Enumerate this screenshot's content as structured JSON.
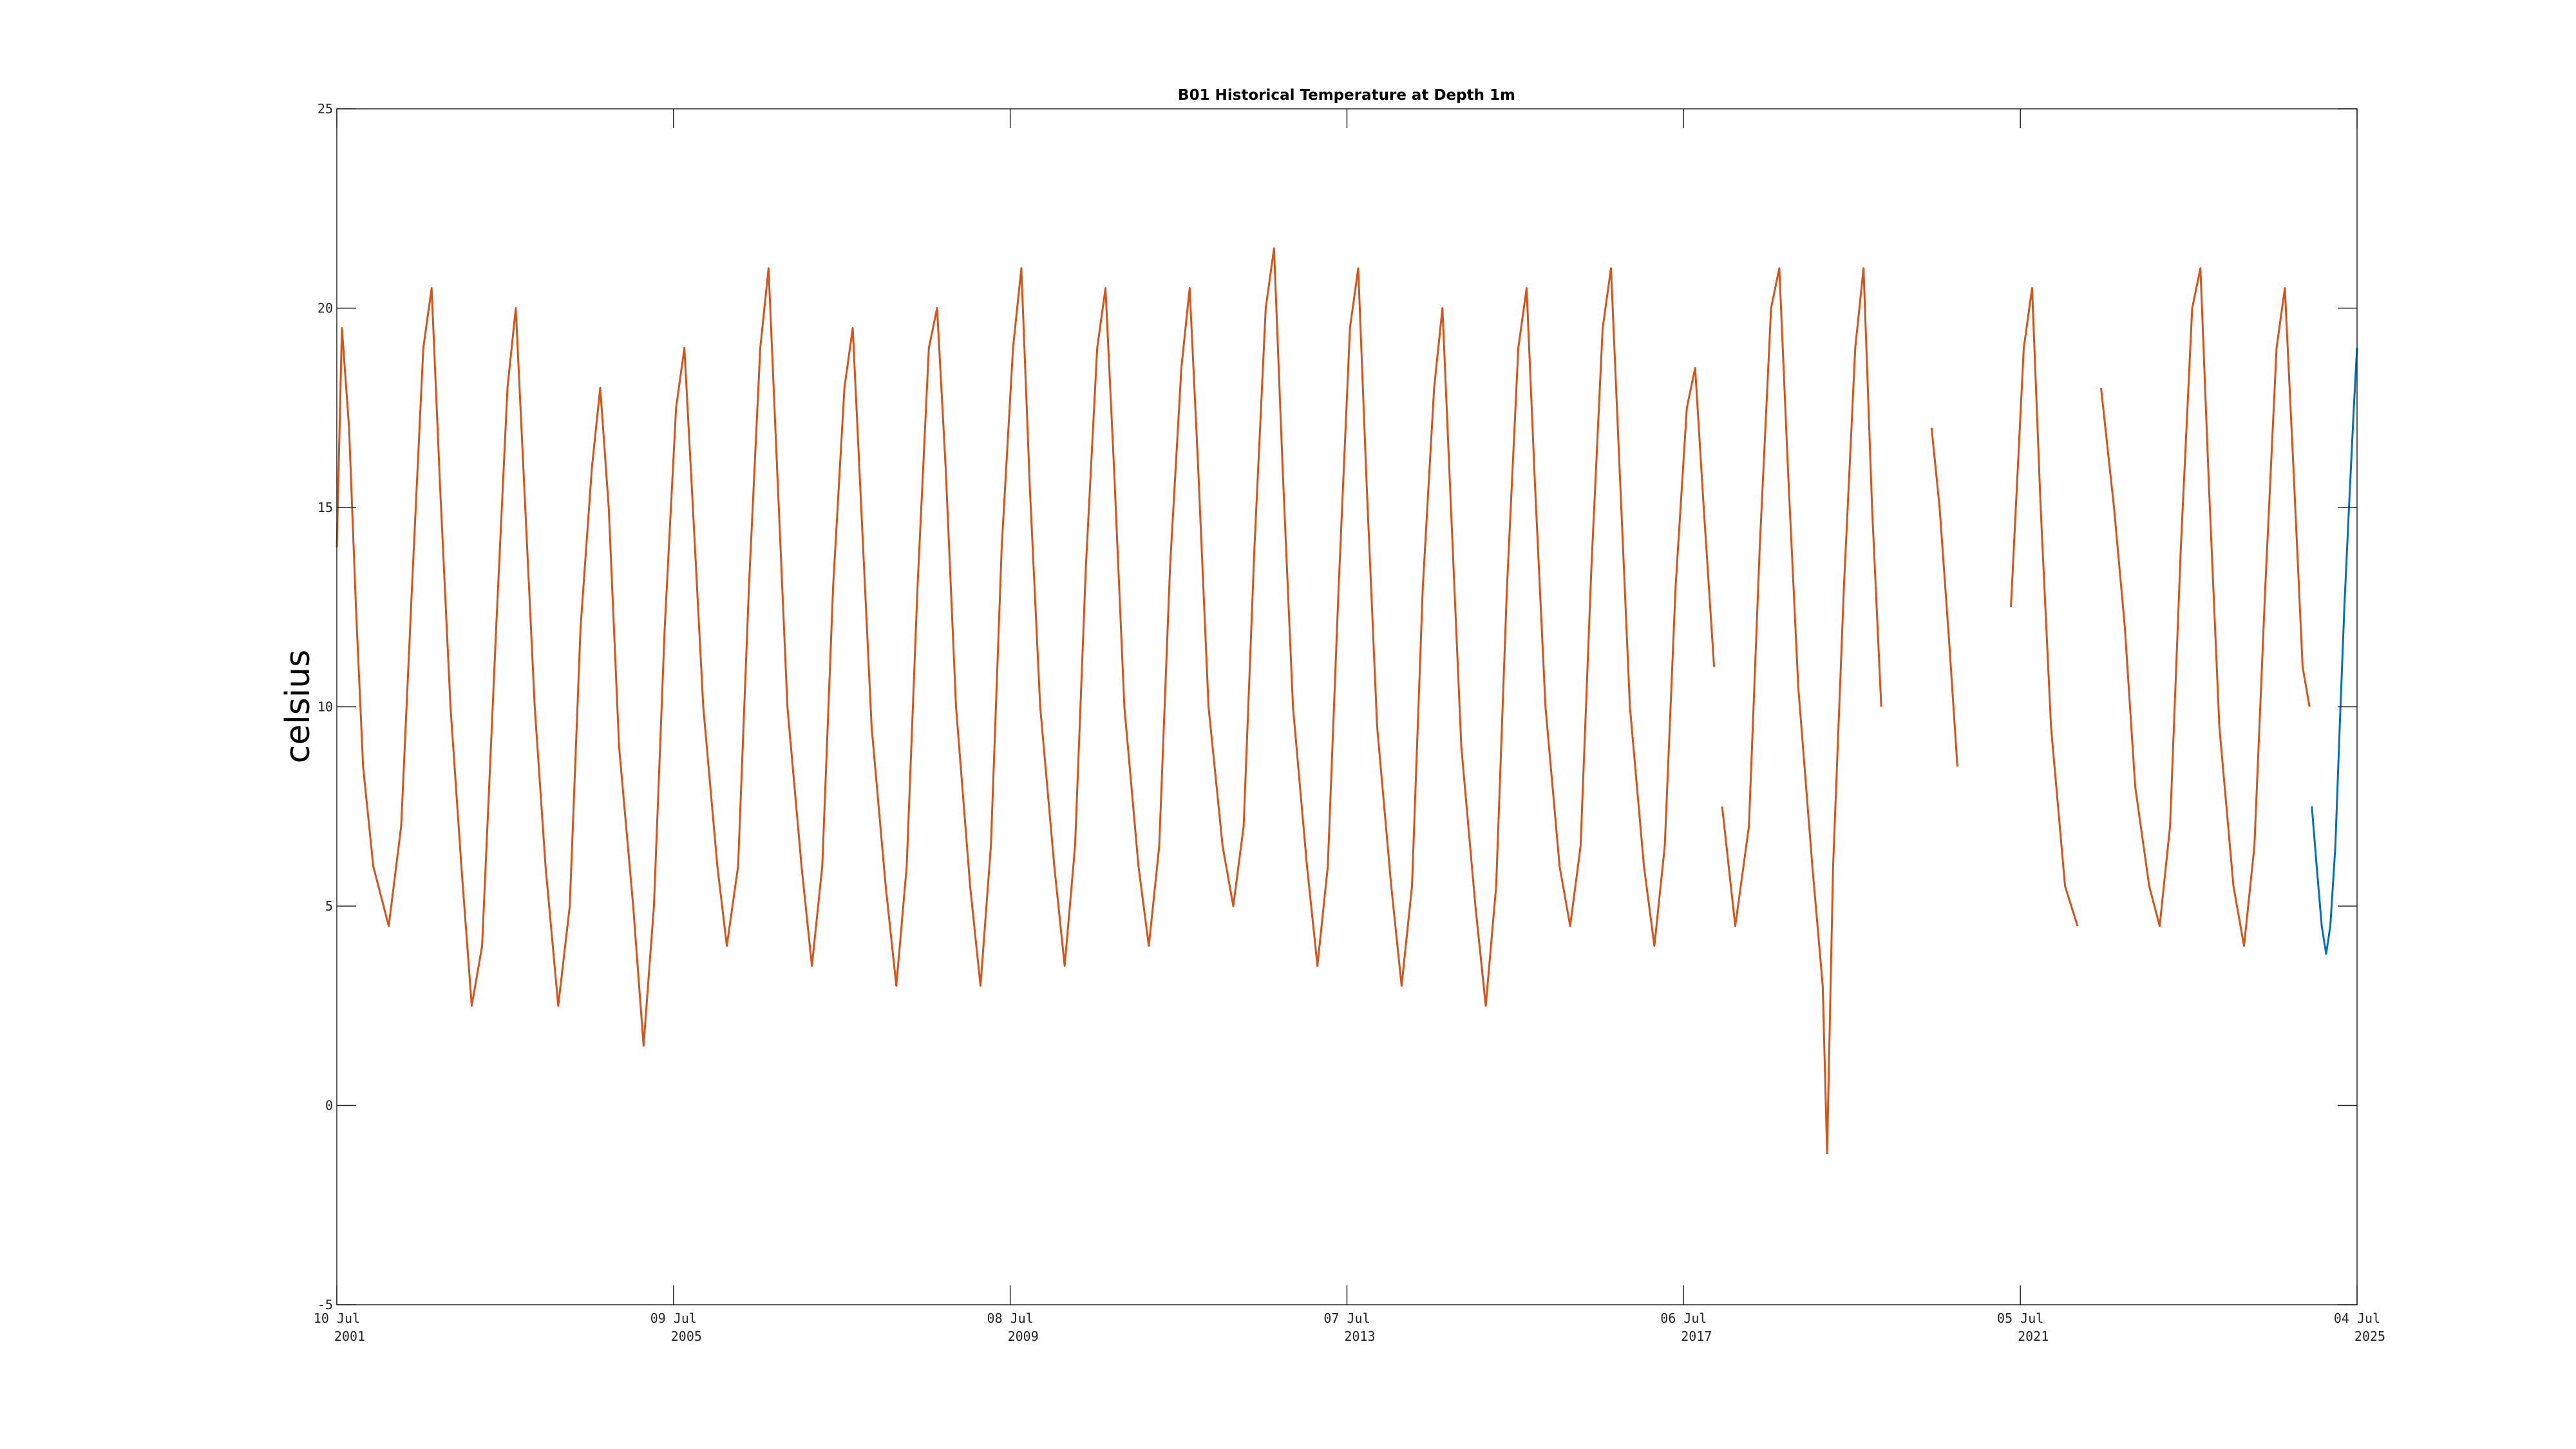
{
  "chart_data": {
    "type": "line",
    "title": "B01 Historical Temperature at Depth 1m",
    "xlabel": "",
    "ylabel": "celsius",
    "ylim": [
      -5,
      25
    ],
    "yticks": [
      -5,
      0,
      5,
      10,
      15,
      20,
      25
    ],
    "xlim": [
      "2001-07-10",
      "2025-07-04"
    ],
    "xticks": [
      {
        "date": "2001-07-10",
        "line1": "10 Jul",
        "line2": "2001"
      },
      {
        "date": "2005-07-09",
        "line1": "09 Jul",
        "line2": "2005"
      },
      {
        "date": "2009-07-08",
        "line1": "08 Jul",
        "line2": "2009"
      },
      {
        "date": "2013-07-07",
        "line1": "07 Jul",
        "line2": "2013"
      },
      {
        "date": "2017-07-06",
        "line1": "06 Jul",
        "line2": "2017"
      },
      {
        "date": "2021-07-05",
        "line1": "05 Jul",
        "line2": "2021"
      },
      {
        "date": "2025-07-04",
        "line1": "04 Jul",
        "line2": "2025"
      }
    ],
    "grid": false,
    "legend": "none",
    "series": [
      {
        "color": "#d95319",
        "points": [
          [
            "2001-07-10",
            14.0
          ],
          [
            "2001-08-01",
            19.5
          ],
          [
            "2001-09-01",
            17.0
          ],
          [
            "2001-10-01",
            12.5
          ],
          [
            "2001-11-01",
            8.5
          ],
          [
            "2001-12-15",
            6.0
          ],
          [
            "2002-02-20",
            4.5
          ],
          [
            "2002-04-15",
            7.0
          ],
          [
            "2002-06-01",
            13.0
          ],
          [
            "2002-07-20",
            19.0
          ],
          [
            "2002-08-25",
            20.5
          ],
          [
            "2002-10-01",
            15.5
          ],
          [
            "2002-11-15",
            10.0
          ],
          [
            "2003-01-01",
            6.0
          ],
          [
            "2003-02-15",
            2.5
          ],
          [
            "2003-04-01",
            4.0
          ],
          [
            "2003-06-01",
            12.0
          ],
          [
            "2003-07-20",
            18.0
          ],
          [
            "2003-08-25",
            20.0
          ],
          [
            "2003-10-01",
            15.5
          ],
          [
            "2003-11-15",
            10.0
          ],
          [
            "2004-01-01",
            6.0
          ],
          [
            "2004-02-25",
            2.5
          ],
          [
            "2004-04-15",
            5.0
          ],
          [
            "2004-06-01",
            12.0
          ],
          [
            "2004-07-20",
            16.0
          ],
          [
            "2004-08-25",
            18.0
          ],
          [
            "2004-10-01",
            15.0
          ],
          [
            "2004-11-15",
            9.0
          ],
          [
            "2005-01-15",
            5.0
          ],
          [
            "2005-03-01",
            1.5
          ],
          [
            "2005-04-15",
            5.0
          ],
          [
            "2005-06-01",
            12.0
          ],
          [
            "2005-07-20",
            17.5
          ],
          [
            "2005-08-25",
            19.0
          ],
          [
            "2005-10-01",
            15.0
          ],
          [
            "2005-11-15",
            10.0
          ],
          [
            "2006-01-15",
            6.0
          ],
          [
            "2006-02-25",
            4.0
          ],
          [
            "2006-04-15",
            6.0
          ],
          [
            "2006-06-01",
            13.0
          ],
          [
            "2006-07-20",
            19.0
          ],
          [
            "2006-08-25",
            21.0
          ],
          [
            "2006-10-01",
            16.0
          ],
          [
            "2006-11-15",
            10.0
          ],
          [
            "2007-01-15",
            6.0
          ],
          [
            "2007-03-01",
            3.5
          ],
          [
            "2007-04-15",
            6.0
          ],
          [
            "2007-06-01",
            13.0
          ],
          [
            "2007-07-20",
            18.0
          ],
          [
            "2007-08-25",
            19.5
          ],
          [
            "2007-10-01",
            15.0
          ],
          [
            "2007-11-15",
            9.5
          ],
          [
            "2008-01-15",
            5.5
          ],
          [
            "2008-03-01",
            3.0
          ],
          [
            "2008-04-15",
            6.0
          ],
          [
            "2008-06-01",
            13.0
          ],
          [
            "2008-07-20",
            19.0
          ],
          [
            "2008-08-25",
            20.0
          ],
          [
            "2008-10-01",
            16.0
          ],
          [
            "2008-11-15",
            10.0
          ],
          [
            "2009-01-15",
            5.5
          ],
          [
            "2009-03-01",
            3.0
          ],
          [
            "2009-04-15",
            6.5
          ],
          [
            "2009-06-01",
            14.0
          ],
          [
            "2009-07-20",
            19.0
          ],
          [
            "2009-08-25",
            21.0
          ],
          [
            "2009-10-01",
            15.5
          ],
          [
            "2009-11-15",
            10.0
          ],
          [
            "2010-01-15",
            6.0
          ],
          [
            "2010-03-01",
            3.5
          ],
          [
            "2010-04-15",
            6.5
          ],
          [
            "2010-06-01",
            13.5
          ],
          [
            "2010-07-20",
            19.0
          ],
          [
            "2010-08-25",
            20.5
          ],
          [
            "2010-10-01",
            16.0
          ],
          [
            "2010-11-15",
            10.0
          ],
          [
            "2011-01-15",
            6.0
          ],
          [
            "2011-03-01",
            4.0
          ],
          [
            "2011-04-15",
            6.5
          ],
          [
            "2011-06-01",
            13.5
          ],
          [
            "2011-07-20",
            18.5
          ],
          [
            "2011-08-25",
            20.5
          ],
          [
            "2011-10-01",
            16.0
          ],
          [
            "2011-11-15",
            10.0
          ],
          [
            "2012-01-15",
            6.5
          ],
          [
            "2012-03-01",
            5.0
          ],
          [
            "2012-04-15",
            7.0
          ],
          [
            "2012-06-01",
            14.0
          ],
          [
            "2012-07-20",
            20.0
          ],
          [
            "2012-08-25",
            21.5
          ],
          [
            "2012-10-01",
            16.0
          ],
          [
            "2012-11-15",
            10.0
          ],
          [
            "2013-01-15",
            6.0
          ],
          [
            "2013-03-01",
            3.5
          ],
          [
            "2013-04-15",
            6.0
          ],
          [
            "2013-06-01",
            13.0
          ],
          [
            "2013-07-20",
            19.5
          ],
          [
            "2013-08-25",
            21.0
          ],
          [
            "2013-10-01",
            15.5
          ],
          [
            "2013-11-15",
            9.5
          ],
          [
            "2014-01-15",
            5.5
          ],
          [
            "2014-03-01",
            3.0
          ],
          [
            "2014-04-15",
            5.5
          ],
          [
            "2014-06-01",
            13.0
          ],
          [
            "2014-07-20",
            18.0
          ],
          [
            "2014-08-25",
            20.0
          ],
          [
            "2014-10-01",
            15.0
          ],
          [
            "2014-11-15",
            9.0
          ],
          [
            "2015-01-15",
            5.0
          ],
          [
            "2015-03-01",
            2.5
          ],
          [
            "2015-04-15",
            5.5
          ],
          [
            "2015-06-01",
            13.0
          ],
          [
            "2015-07-20",
            19.0
          ],
          [
            "2015-08-25",
            20.5
          ],
          [
            "2015-10-01",
            15.5
          ],
          [
            "2015-11-15",
            10.0
          ],
          [
            "2016-01-15",
            6.0
          ],
          [
            "2016-03-01",
            4.5
          ],
          [
            "2016-04-15",
            6.5
          ],
          [
            "2016-06-01",
            13.5
          ],
          [
            "2016-07-20",
            19.5
          ],
          [
            "2016-08-25",
            21.0
          ],
          [
            "2016-10-01",
            16.0
          ],
          [
            "2016-11-15",
            10.0
          ],
          [
            "2017-01-15",
            6.0
          ],
          [
            "2017-03-01",
            4.0
          ],
          [
            "2017-04-15",
            6.5
          ],
          [
            "2017-06-01",
            13.0
          ],
          [
            "2017-07-20",
            17.5
          ],
          [
            "2017-08-25",
            18.5
          ],
          [
            "2017-10-01",
            15.0
          ],
          [
            "2017-11-15",
            11.0
          ],
          null,
          [
            "2017-12-20",
            7.5
          ],
          [
            "2018-02-15",
            4.5
          ],
          [
            "2018-04-15",
            7.0
          ],
          [
            "2018-06-01",
            14.0
          ],
          [
            "2018-07-20",
            20.0
          ],
          [
            "2018-08-25",
            21.0
          ],
          [
            "2018-10-01",
            16.0
          ],
          [
            "2018-11-15",
            10.5
          ],
          [
            "2019-01-15",
            6.0
          ],
          [
            "2019-03-01",
            3.0
          ],
          [
            "2019-03-20",
            -1.2
          ],
          [
            "2019-04-15",
            6.0
          ],
          [
            "2019-06-01",
            13.0
          ],
          [
            "2019-07-20",
            19.0
          ],
          [
            "2019-08-25",
            21.0
          ],
          [
            "2019-10-01",
            15.0
          ],
          [
            "2019-11-10",
            10.0
          ],
          null,
          [
            "2020-06-15",
            17.0
          ],
          [
            "2020-07-20",
            15.0
          ],
          [
            "2020-09-01",
            11.5
          ],
          [
            "2020-10-05",
            8.5
          ],
          null,
          [
            "2021-05-25",
            12.5
          ],
          [
            "2021-07-20",
            19.0
          ],
          [
            "2021-08-25",
            20.5
          ],
          [
            "2021-10-01",
            15.0
          ],
          [
            "2021-11-15",
            9.5
          ],
          [
            "2022-01-15",
            5.5
          ],
          [
            "2022-03-10",
            4.5
          ],
          null,
          [
            "2022-06-20",
            18.0
          ],
          [
            "2022-08-15",
            15.0
          ],
          [
            "2022-10-01",
            12.0
          ],
          [
            "2022-11-15",
            8.0
          ],
          [
            "2023-01-15",
            5.5
          ],
          [
            "2023-03-01",
            4.5
          ],
          [
            "2023-04-15",
            7.0
          ],
          [
            "2023-06-01",
            14.0
          ],
          [
            "2023-07-20",
            20.0
          ],
          [
            "2023-08-25",
            21.0
          ],
          [
            "2023-10-01",
            15.5
          ],
          [
            "2023-11-15",
            9.5
          ],
          [
            "2024-01-15",
            5.5
          ],
          [
            "2024-03-01",
            4.0
          ],
          [
            "2024-04-15",
            6.5
          ],
          [
            "2024-06-01",
            13.0
          ],
          [
            "2024-07-20",
            19.0
          ],
          [
            "2024-08-25",
            20.5
          ],
          [
            "2024-10-01",
            16.0
          ],
          [
            "2024-11-10",
            11.0
          ],
          [
            "2024-12-10",
            10.0
          ]
        ]
      },
      {
        "color": "#0072bd",
        "points": [
          [
            "2024-12-20",
            7.5
          ],
          [
            "2025-01-10",
            6.0
          ],
          [
            "2025-02-01",
            4.5
          ],
          [
            "2025-02-20",
            3.8
          ],
          [
            "2025-03-10",
            4.5
          ],
          [
            "2025-04-01",
            6.5
          ],
          [
            "2025-04-20",
            9.5
          ],
          [
            "2025-05-10",
            12.5
          ],
          [
            "2025-05-30",
            15.0
          ],
          [
            "2025-06-20",
            17.5
          ],
          [
            "2025-07-04",
            19.0
          ]
        ]
      }
    ]
  }
}
